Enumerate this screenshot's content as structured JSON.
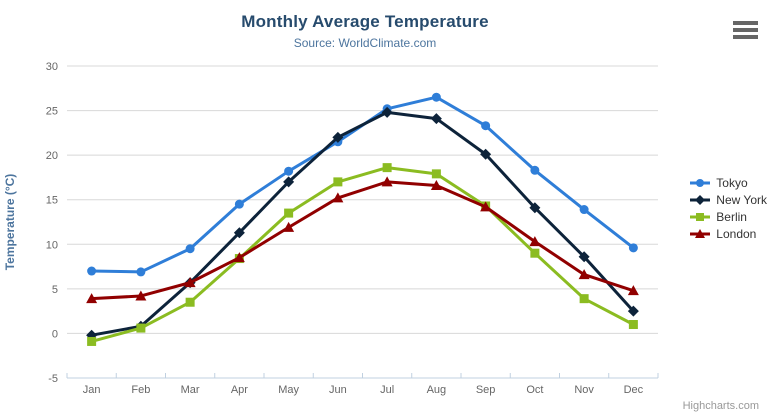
{
  "chart_data": {
    "type": "line",
    "title": "Monthly Average Temperature",
    "subtitle": "Source: WorldClimate.com",
    "xlabel": "",
    "ylabel": "Temperature (°C)",
    "ylim": [
      -5,
      30
    ],
    "y_ticks": [
      -5,
      0,
      5,
      10,
      15,
      20,
      25,
      30
    ],
    "grid": true,
    "legend_position": "right",
    "categories": [
      "Jan",
      "Feb",
      "Mar",
      "Apr",
      "May",
      "Jun",
      "Jul",
      "Aug",
      "Sep",
      "Oct",
      "Nov",
      "Dec"
    ],
    "series": [
      {
        "name": "Tokyo",
        "marker": "circle",
        "color": "#2f7ed8",
        "values": [
          7.0,
          6.9,
          9.5,
          14.5,
          18.2,
          21.5,
          25.2,
          26.5,
          23.3,
          18.3,
          13.9,
          9.6
        ]
      },
      {
        "name": "New York",
        "marker": "diamond",
        "color": "#0d233a",
        "values": [
          -0.2,
          0.8,
          5.7,
          11.3,
          17.0,
          22.0,
          24.8,
          24.1,
          20.1,
          14.1,
          8.6,
          2.5
        ]
      },
      {
        "name": "Berlin",
        "marker": "square",
        "color": "#8bbc21",
        "values": [
          -0.9,
          0.6,
          3.5,
          8.4,
          13.5,
          17.0,
          18.6,
          17.9,
          14.3,
          9.0,
          3.9,
          1.0
        ]
      },
      {
        "name": "London",
        "marker": "triangle",
        "color": "#910000",
        "values": [
          3.9,
          4.2,
          5.7,
          8.5,
          11.9,
          15.2,
          17.0,
          16.6,
          14.2,
          10.3,
          6.6,
          4.8
        ]
      }
    ]
  },
  "credits": {
    "label": "Highcharts.com"
  },
  "menu": {
    "icon": "hamburger-menu-icon"
  },
  "colors": {
    "title": "#274b6d",
    "subtitle": "#4d759e",
    "axis_label": "#666666",
    "y_axis_title": "#4d759e",
    "gridline": "#d8d8d8",
    "axis_line": "#c0d0e0",
    "legend_text": "#333333",
    "credits": "#999999",
    "menu_icon": "#666666"
  }
}
